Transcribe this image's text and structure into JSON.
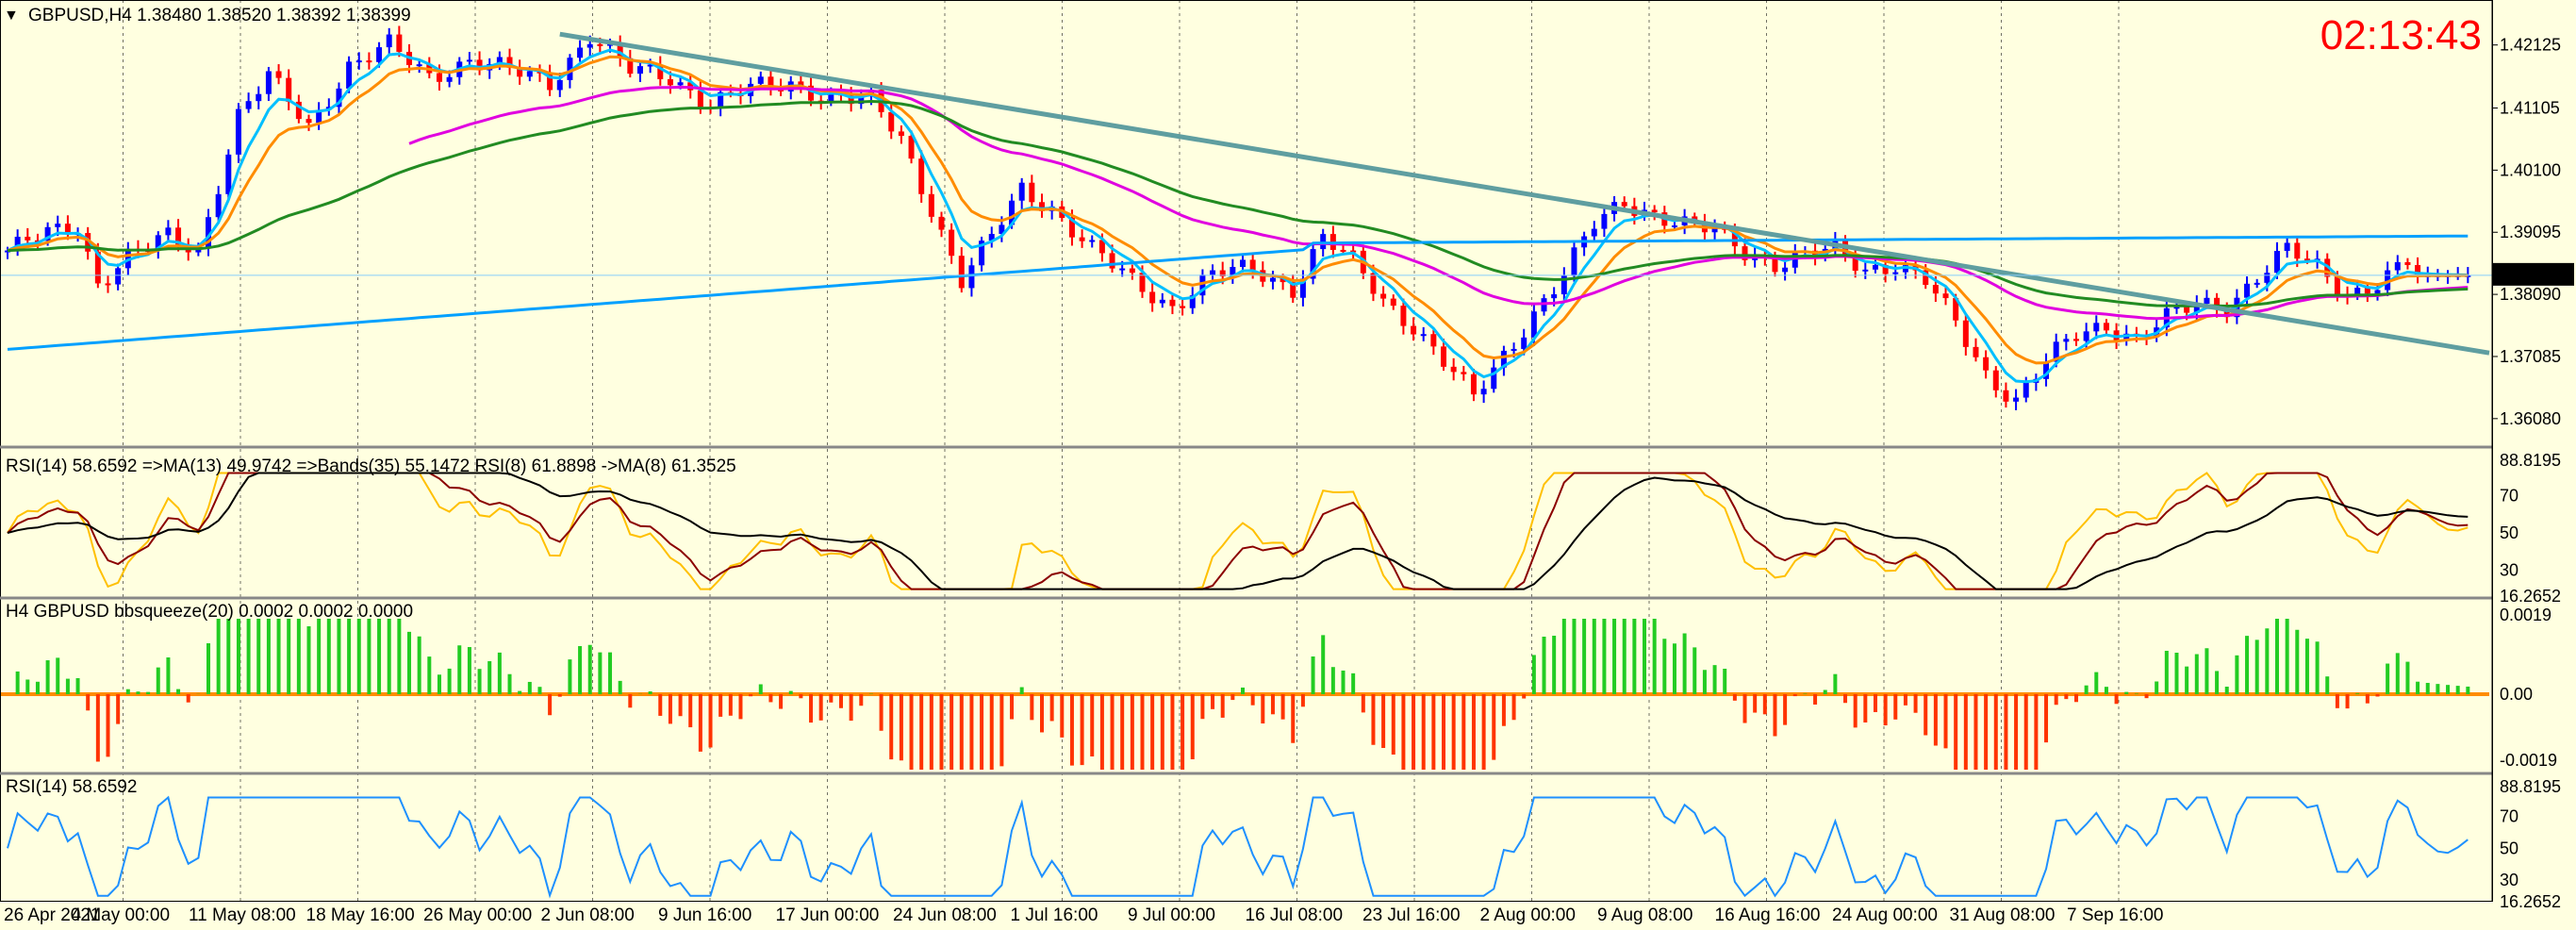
{
  "chart_data": {
    "type": "candlestick",
    "symbol": "GBPUSD,H4",
    "header": "GBPUSD,H4  1.38480 1.38520 1.38392 1.38399",
    "ohlc_last": [
      1.3848,
      1.3852,
      1.38392,
      1.38399
    ],
    "timer": "02:13:43",
    "current_price": "1.38399",
    "price_axis": {
      "ticks": [
        "1.42125",
        "1.41105",
        "1.40100",
        "1.39095",
        "1.38090",
        "1.37085",
        "1.36080"
      ],
      "ylim": [
        1.3565,
        1.427
      ]
    },
    "time_axis": [
      "26 Apr 2021",
      "4 May 00:00",
      "11 May 08:00",
      "18 May 16:00",
      "26 May 00:00",
      "2 Jun 08:00",
      "9 Jun 16:00",
      "17 Jun 00:00",
      "24 Jun 08:00",
      "1 Jul 16:00",
      "9 Jul 00:00",
      "16 Jul 08:00",
      "23 Jul 16:00",
      "2 Aug 00:00",
      "9 Aug 08:00",
      "16 Aug 16:00",
      "24 Aug 00:00",
      "31 Aug 08:00",
      "7 Sep 16:00"
    ],
    "price_path": [
      [
        0,
        1.388
      ],
      [
        4,
        1.3905
      ],
      [
        7,
        1.392
      ],
      [
        9,
        1.383
      ],
      [
        12,
        1.387
      ],
      [
        16,
        1.39
      ],
      [
        19,
        1.388
      ],
      [
        23,
        1.41
      ],
      [
        26,
        1.416
      ],
      [
        30,
        1.408
      ],
      [
        34,
        1.418
      ],
      [
        38,
        1.421
      ],
      [
        42,
        1.416
      ],
      [
        46,
        1.419
      ],
      [
        50,
        1.417
      ],
      [
        54,
        1.415
      ],
      [
        58,
        1.423
      ],
      [
        62,
        1.417
      ],
      [
        66,
        1.416
      ],
      [
        70,
        1.412
      ],
      [
        74,
        1.414
      ],
      [
        78,
        1.415
      ],
      [
        82,
        1.413
      ],
      [
        86,
        1.412
      ],
      [
        89,
        1.406
      ],
      [
        92,
        1.395
      ],
      [
        95,
        1.383
      ],
      [
        98,
        1.39
      ],
      [
        101,
        1.398
      ],
      [
        104,
        1.395
      ],
      [
        108,
        1.388
      ],
      [
        112,
        1.383
      ],
      [
        116,
        1.379
      ],
      [
        120,
        1.384
      ],
      [
        124,
        1.385
      ],
      [
        128,
        1.382
      ],
      [
        131,
        1.39
      ],
      [
        134,
        1.386
      ],
      [
        137,
        1.38
      ],
      [
        140,
        1.376
      ],
      [
        143,
        1.37
      ],
      [
        146,
        1.364
      ],
      [
        149,
        1.371
      ],
      [
        152,
        1.378
      ],
      [
        155,
        1.384
      ],
      [
        158,
        1.392
      ],
      [
        161,
        1.396
      ],
      [
        164,
        1.394
      ],
      [
        167,
        1.392
      ],
      [
        170,
        1.391
      ],
      [
        173,
        1.388
      ],
      [
        176,
        1.386
      ],
      [
        179,
        1.387
      ],
      [
        182,
        1.388
      ],
      [
        185,
        1.385
      ],
      [
        188,
        1.386
      ],
      [
        191,
        1.383
      ],
      [
        194,
        1.376
      ],
      [
        197,
        1.368
      ],
      [
        200,
        1.364
      ],
      [
        203,
        1.37
      ],
      [
        206,
        1.374
      ],
      [
        209,
        1.376
      ],
      [
        212,
        1.374
      ],
      [
        215,
        1.377
      ],
      [
        218,
        1.379
      ],
      [
        221,
        1.379
      ],
      [
        224,
        1.384
      ],
      [
        227,
        1.388
      ],
      [
        230,
        1.385
      ],
      [
        233,
        1.381
      ],
      [
        236,
        1.383
      ],
      [
        239,
        1.386
      ],
      [
        240,
        1.384
      ]
    ],
    "indicators": {
      "ma_fast": {
        "color": "#00bfff"
      },
      "ma_mid": {
        "color": "#ff8c00"
      },
      "ma_slow": {
        "color": "#e000e0"
      },
      "ma_long": {
        "color": "#228b22"
      },
      "ma_200": {
        "color": "#00a0ff"
      },
      "trendline": {
        "color": "#5f9ea0",
        "from": [
          55,
          1.423
        ],
        "to": [
          245,
          1.372
        ]
      }
    },
    "panels": [
      {
        "title": "RSI(14) 58.6592  =>MA(13) 49.9742  =>Bands(35) 55.1472  RSI(8) 61.8898  ->MA(8) 61.3525",
        "ticks": [
          "88.8195",
          "70",
          "50",
          "30",
          "16.2652"
        ]
      },
      {
        "title": "H4 GBPUSD bbsqueeze(20) 0.0002 0.0002 0.0000",
        "ticks": [
          "0.0019",
          "0.00",
          "-0.0019"
        ]
      },
      {
        "title": "RSI(14) 58.6592",
        "ticks": [
          "88.8195",
          "70",
          "50",
          "30",
          "16.2652"
        ]
      }
    ]
  },
  "colors": {
    "background": "#ffffe0",
    "bull": "#0000ff",
    "bear": "#ff0000",
    "grid": "#000000",
    "rsi_line": "#1e90ff",
    "squeeze_pos": "#22cc22",
    "squeeze_neg": "#ff3300"
  }
}
